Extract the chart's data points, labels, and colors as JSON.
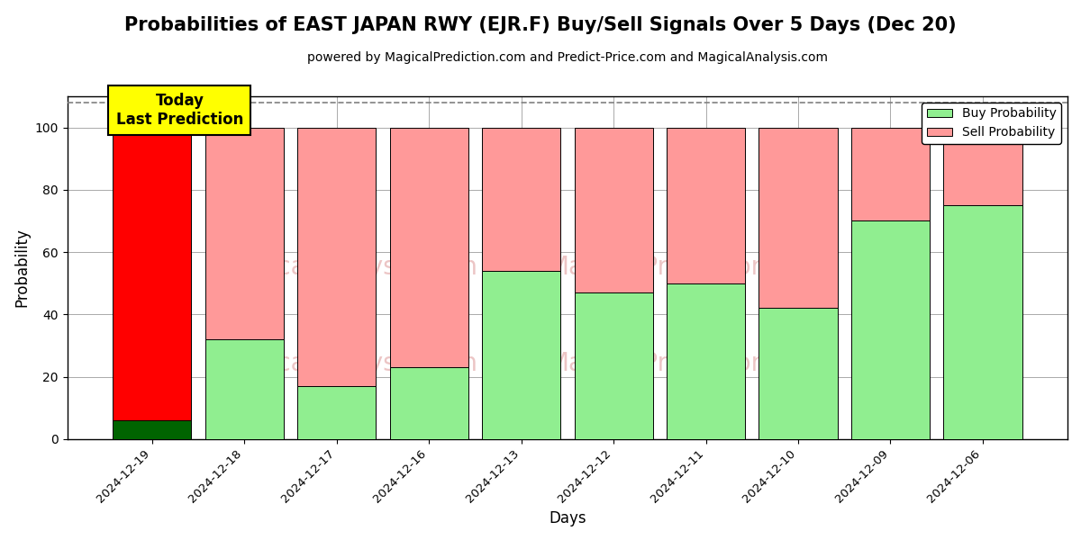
{
  "title": "Probabilities of EAST JAPAN RWY (EJR.F) Buy/Sell Signals Over 5 Days (Dec 20)",
  "subtitle": "powered by MagicalPrediction.com and Predict-Price.com and MagicalAnalysis.com",
  "xlabel": "Days",
  "ylabel": "Probability",
  "categories": [
    "2024-12-19",
    "2024-12-18",
    "2024-12-17",
    "2024-12-16",
    "2024-12-13",
    "2024-12-12",
    "2024-12-11",
    "2024-12-10",
    "2024-12-09",
    "2024-12-06"
  ],
  "buy_values": [
    6,
    32,
    17,
    23,
    54,
    47,
    50,
    42,
    70,
    75
  ],
  "sell_values": [
    94,
    68,
    83,
    77,
    46,
    53,
    50,
    58,
    30,
    25
  ],
  "buy_color_normal": "#90EE90",
  "buy_color_today": "#006400",
  "sell_color_normal": "#FF9999",
  "sell_color_today": "#FF0000",
  "today_annotation_text": "Today\nLast Prediction",
  "today_annotation_bg": "#FFFF00",
  "ylim": [
    0,
    110
  ],
  "yticks": [
    0,
    20,
    40,
    60,
    80,
    100
  ],
  "dashed_line_y": 108,
  "legend_buy_label": "Buy Probability",
  "legend_sell_label": "Sell Probability",
  "background_color": "#ffffff",
  "grid_color": "#aaaaaa",
  "title_fontsize": 15,
  "subtitle_fontsize": 10
}
